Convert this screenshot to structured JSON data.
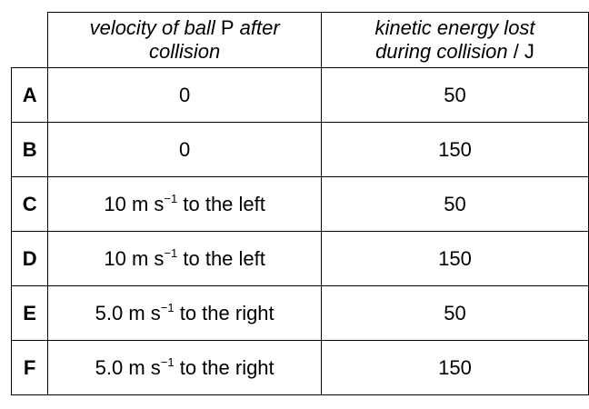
{
  "table": {
    "header": [
      [
        "velocity of ball ",
        "P",
        " after collision"
      ],
      [
        "kinetic energy lost during collision ",
        "/ J"
      ]
    ],
    "rows": [
      {
        "label": "A",
        "velocity": [
          "0"
        ],
        "energy": 50
      },
      {
        "label": "B",
        "velocity": [
          "0"
        ],
        "energy": 150
      },
      {
        "label": "C",
        "velocity": [
          "10 m s",
          "−1",
          " to the left"
        ],
        "energy": 50
      },
      {
        "label": "D",
        "velocity": [
          "10 m s",
          "−1",
          " to the left"
        ],
        "energy": 150
      },
      {
        "label": "E",
        "velocity": [
          "5.0 m s",
          "−1",
          " to the right"
        ],
        "energy": 50
      },
      {
        "label": "F",
        "velocity": [
          "5.0 m s",
          "−1",
          " to the right"
        ],
        "energy": 150
      }
    ]
  }
}
